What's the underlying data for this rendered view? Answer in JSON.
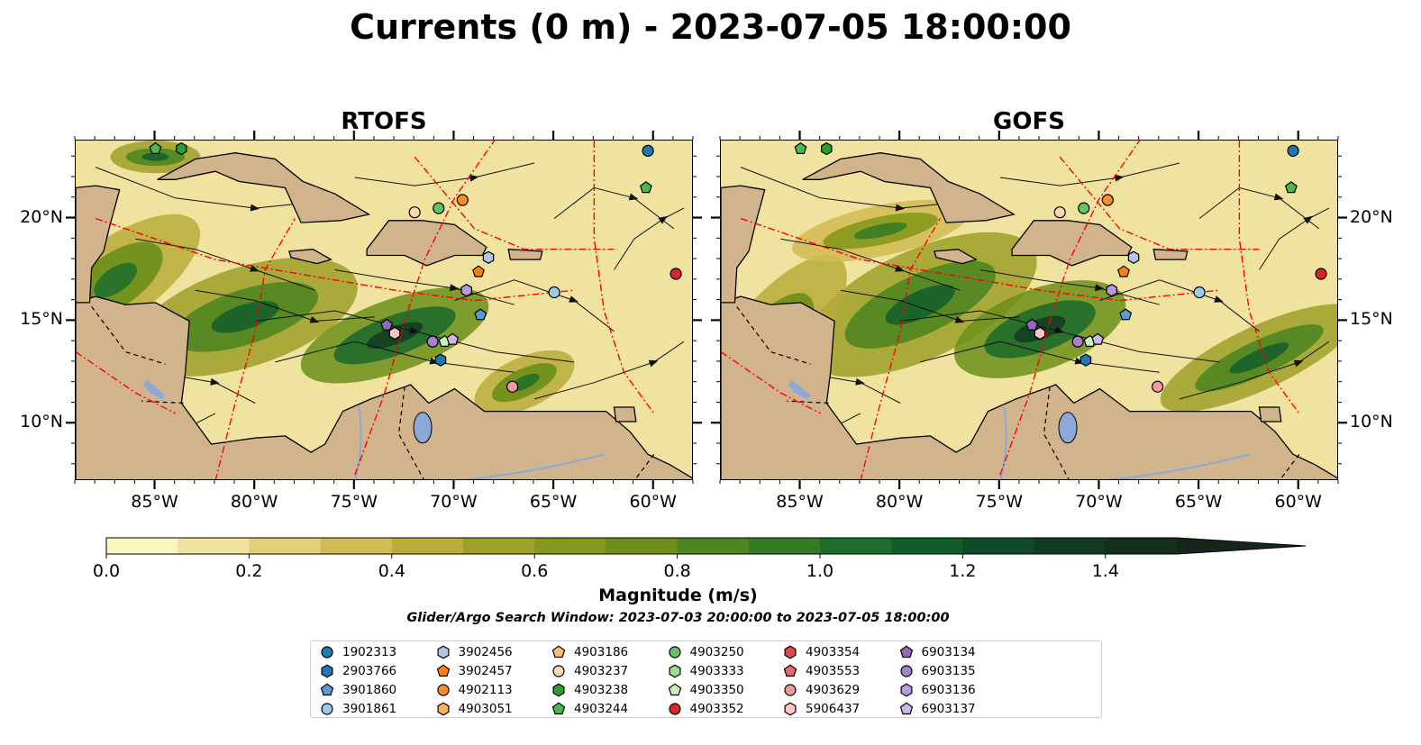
{
  "title": "Currents (0 m) - 2023-07-05 18:00:00",
  "panels": [
    {
      "title": "RTOFS"
    },
    {
      "title": "GOFS"
    }
  ],
  "map": {
    "lon_ticks": [
      "85°W",
      "80°W",
      "75°W",
      "70°W",
      "65°W",
      "60°W"
    ],
    "lat_ticks": [
      "20°N",
      "15°N",
      "10°N"
    ],
    "lon_range": [
      -89,
      -58
    ],
    "lat_range": [
      7.2,
      23.8
    ],
    "land_color": "#d2b48c",
    "eez_color": "#ff0000",
    "river_color": "#8aa9d6"
  },
  "colorbar": {
    "label": "Magnitude (m/s)",
    "ticks": [
      "0.0",
      "0.2",
      "0.4",
      "0.6",
      "0.8",
      "1.0",
      "1.2",
      "1.4"
    ],
    "colors": [
      "#fdf6c0",
      "#f0e3a0",
      "#e2cf77",
      "#d2bb54",
      "#b9ad3a",
      "#9ea028",
      "#86981c",
      "#6c8f19",
      "#4f8520",
      "#357a25",
      "#1f6d2a",
      "#125e2b",
      "#104a26",
      "#123a22",
      "#162e1d",
      "#17261a"
    ],
    "range": [
      0,
      1.5
    ],
    "extend": "max"
  },
  "search_window": "Glider/Argo Search Window: 2023-07-03 20:00:00 to 2023-07-05 18:00:00",
  "legend": {
    "items": [
      {
        "id": "1902313",
        "color": "#1f77b4",
        "marker": "circle"
      },
      {
        "id": "2903766",
        "color": "#1f77b4",
        "marker": "hexagon"
      },
      {
        "id": "3901860",
        "color": "#5a9bd5",
        "marker": "pentagon"
      },
      {
        "id": "3901861",
        "color": "#9ecae9",
        "marker": "circle"
      },
      {
        "id": "3902456",
        "color": "#aec7e8",
        "marker": "hexagon"
      },
      {
        "id": "3902457",
        "color": "#ff7f0e",
        "marker": "pentagon"
      },
      {
        "id": "4902113",
        "color": "#ff8c2a",
        "marker": "circle"
      },
      {
        "id": "4903051",
        "color": "#ffae5c",
        "marker": "hexagon"
      },
      {
        "id": "4903186",
        "color": "#ffbb78",
        "marker": "pentagon"
      },
      {
        "id": "4903237",
        "color": "#ffd8b1",
        "marker": "circle"
      },
      {
        "id": "4903238",
        "color": "#2ca02c",
        "marker": "hexagon"
      },
      {
        "id": "4903244",
        "color": "#4cb84c",
        "marker": "pentagon"
      },
      {
        "id": "4903250",
        "color": "#66c266",
        "marker": "circle"
      },
      {
        "id": "4903333",
        "color": "#98df8a",
        "marker": "hexagon"
      },
      {
        "id": "4903350",
        "color": "#c7f2b8",
        "marker": "pentagon"
      },
      {
        "id": "4903352",
        "color": "#d62728",
        "marker": "circle"
      },
      {
        "id": "4903354",
        "color": "#e04848",
        "marker": "hexagon"
      },
      {
        "id": "4903553",
        "color": "#e86a6a",
        "marker": "pentagon"
      },
      {
        "id": "4903629",
        "color": "#f29a9a",
        "marker": "circle"
      },
      {
        "id": "5906437",
        "color": "#ffc4c4",
        "marker": "hexagon"
      },
      {
        "id": "6903134",
        "color": "#9467bd",
        "marker": "pentagon"
      },
      {
        "id": "6903135",
        "color": "#a67fd0",
        "marker": "circle"
      },
      {
        "id": "6903136",
        "color": "#b99ae0",
        "marker": "hexagon"
      },
      {
        "id": "6903137",
        "color": "#cdb6ee",
        "marker": "pentagon"
      }
    ]
  },
  "floats": [
    {
      "id": "4903244",
      "lon": -85.0,
      "lat": 23.4
    },
    {
      "id": "4903238",
      "lon": -83.7,
      "lat": 23.4
    },
    {
      "id": "1902313",
      "lon": -60.3,
      "lat": 23.3
    },
    {
      "id": "4903244",
      "lon": -60.4,
      "lat": 21.5
    },
    {
      "id": "4903237",
      "lon": -72.0,
      "lat": 20.3
    },
    {
      "id": "4903250",
      "lon": -70.8,
      "lat": 20.5
    },
    {
      "id": "4902113",
      "lon": -69.6,
      "lat": 20.9
    },
    {
      "id": "3902456",
      "lon": -68.3,
      "lat": 18.1
    },
    {
      "id": "3902457",
      "lon": -68.8,
      "lat": 17.4
    },
    {
      "id": "4903352",
      "lon": -58.9,
      "lat": 17.3
    },
    {
      "id": "6903136",
      "lon": -69.4,
      "lat": 16.5
    },
    {
      "id": "3901861",
      "lon": -65.0,
      "lat": 16.4
    },
    {
      "id": "3901860",
      "lon": -68.7,
      "lat": 15.3
    },
    {
      "id": "6903134",
      "lon": -73.4,
      "lat": 14.8
    },
    {
      "id": "5906437",
      "lon": -73.0,
      "lat": 14.4
    },
    {
      "id": "6903135",
      "lon": -71.1,
      "lat": 14.0
    },
    {
      "id": "4903350",
      "lon": -70.5,
      "lat": 14.0
    },
    {
      "id": "6903137",
      "lon": -70.1,
      "lat": 14.1
    },
    {
      "id": "2903766",
      "lon": -70.7,
      "lat": 13.1
    },
    {
      "id": "4903629",
      "lon": -67.1,
      "lat": 11.8
    }
  ]
}
